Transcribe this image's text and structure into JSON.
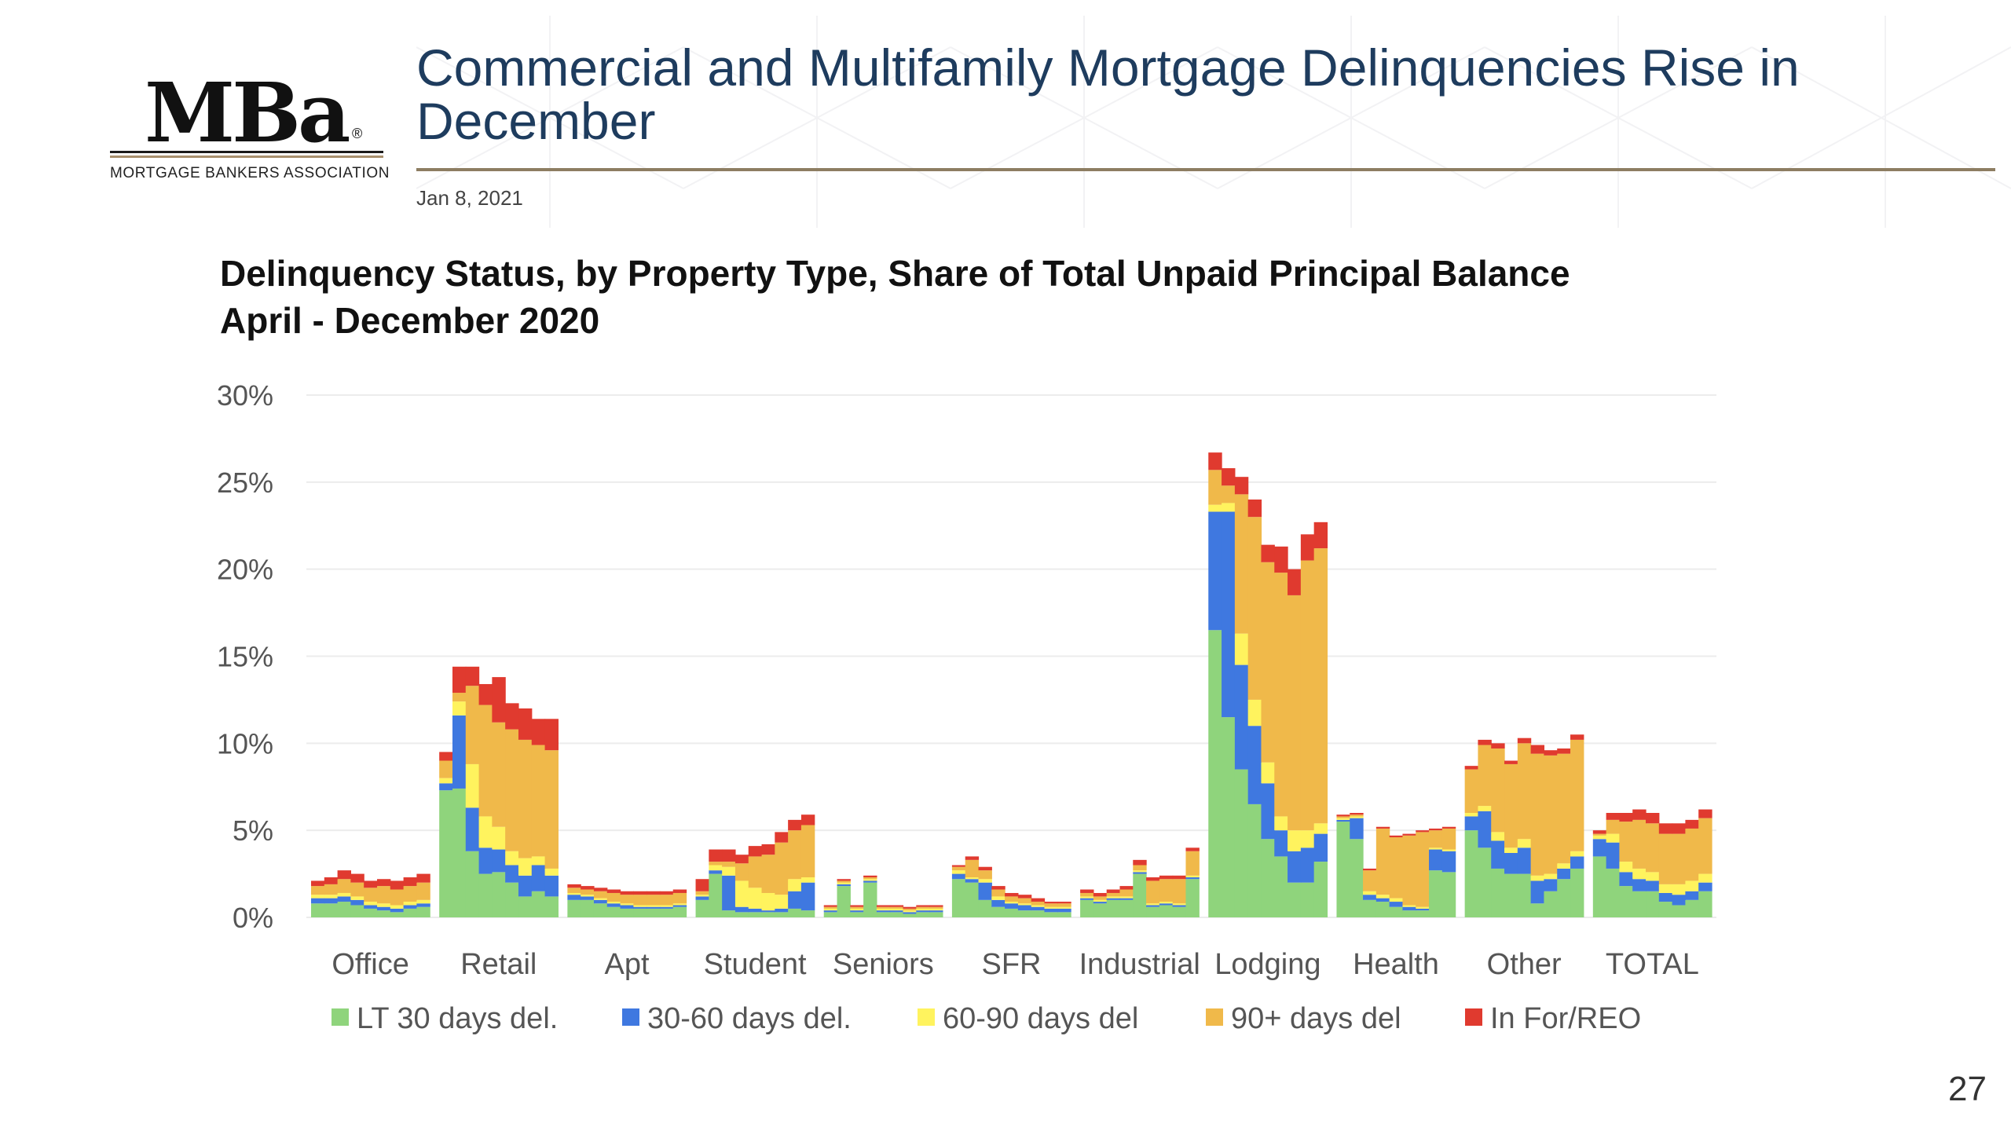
{
  "header": {
    "logo_mark": "MBa",
    "logo_registered": "®",
    "logo_text": "MORTGAGE BANKERS ASSOCIATION",
    "title": "Commercial and Multifamily Mortgage Delinquencies Rise in December",
    "date": "Jan 8, 2021"
  },
  "page_number": "27",
  "colors": {
    "title": "#1e3c5e",
    "rule": "#8d7d62",
    "series": [
      "#8fd47c",
      "#3f78e0",
      "#fff35e",
      "#f0b94a",
      "#e03a2f"
    ]
  },
  "chart_data": {
    "type": "bar",
    "stacked": true,
    "title": "Delinquency Status, by Property Type, Share of Total Unpaid Principal Balance",
    "subtitle": "April - December 2020",
    "ylim": [
      0,
      30
    ],
    "yticks": [
      "0%",
      "5%",
      "10%",
      "15%",
      "20%",
      "25%",
      "30%"
    ],
    "grid": true,
    "legend_position": "bottom",
    "months_per_group": 9,
    "categories": [
      "Office",
      "Retail",
      "Apt",
      "Student",
      "Seniors",
      "SFR",
      "Industrial",
      "Lodging",
      "Health",
      "Other",
      "TOTAL"
    ],
    "series": [
      {
        "name": "LT 30 days del.",
        "values": [
          [
            0.8,
            0.8,
            0.9,
            0.7,
            0.5,
            0.4,
            0.3,
            0.5,
            0.6
          ],
          [
            7.3,
            7.4,
            3.8,
            2.5,
            2.6,
            2.0,
            1.2,
            1.5,
            1.2
          ],
          [
            1.0,
            1.0,
            0.8,
            0.6,
            0.5,
            0.5,
            0.5,
            0.5,
            0.6
          ],
          [
            1.0,
            2.5,
            0.4,
            0.3,
            0.3,
            0.3,
            0.3,
            0.5,
            0.4
          ],
          [
            0.3,
            1.8,
            0.3,
            2.0,
            0.3,
            0.3,
            0.2,
            0.3,
            0.3
          ],
          [
            2.2,
            2.0,
            1.0,
            0.6,
            0.5,
            0.4,
            0.4,
            0.3,
            0.3
          ],
          [
            1.0,
            0.8,
            1.0,
            1.0,
            2.5,
            0.6,
            0.7,
            0.6,
            2.2
          ],
          [
            16.5,
            11.5,
            8.5,
            6.5,
            4.5,
            3.5,
            2.0,
            2.0,
            3.2
          ],
          [
            5.5,
            4.5,
            1.0,
            0.9,
            0.6,
            0.4,
            0.4,
            2.7,
            2.6
          ],
          [
            5.0,
            4.0,
            2.8,
            2.5,
            2.5,
            0.8,
            1.5,
            2.2,
            2.8
          ],
          [
            3.5,
            2.8,
            1.8,
            1.5,
            1.5,
            0.9,
            0.7,
            1.0,
            1.5
          ]
        ]
      },
      {
        "name": "30-60 days del.",
        "values": [
          [
            0.3,
            0.3,
            0.3,
            0.3,
            0.2,
            0.2,
            0.2,
            0.2,
            0.2
          ],
          [
            0.4,
            4.2,
            2.5,
            1.5,
            1.3,
            1.0,
            1.2,
            1.5,
            1.2
          ],
          [
            0.3,
            0.2,
            0.2,
            0.2,
            0.2,
            0.1,
            0.1,
            0.1,
            0.1
          ],
          [
            0.2,
            0.2,
            2.0,
            0.3,
            0.2,
            0.1,
            0.2,
            1.0,
            1.6
          ],
          [
            0.1,
            0.1,
            0.1,
            0.1,
            0.1,
            0.1,
            0.1,
            0.1,
            0.1
          ],
          [
            0.3,
            0.2,
            1.0,
            0.4,
            0.3,
            0.3,
            0.2,
            0.2,
            0.2
          ],
          [
            0.1,
            0.1,
            0.1,
            0.1,
            0.1,
            0.1,
            0.1,
            0.1,
            0.1
          ],
          [
            6.8,
            11.8,
            6.0,
            4.5,
            3.2,
            1.5,
            1.8,
            2.0,
            1.6
          ],
          [
            0.1,
            1.2,
            0.3,
            0.2,
            0.3,
            0.2,
            0.1,
            1.2,
            1.2
          ],
          [
            0.8,
            2.1,
            1.6,
            1.2,
            1.5,
            1.3,
            0.7,
            0.6,
            0.7
          ],
          [
            1.0,
            1.5,
            0.8,
            0.7,
            0.6,
            0.5,
            0.6,
            0.5,
            0.5
          ]
        ]
      },
      {
        "name": "60-90 days del",
        "values": [
          [
            0.2,
            0.2,
            0.2,
            0.2,
            0.2,
            0.2,
            0.2,
            0.2,
            0.2
          ],
          [
            0.3,
            0.8,
            2.5,
            1.8,
            1.3,
            0.8,
            1.0,
            0.5,
            0.4
          ],
          [
            0.1,
            0.1,
            0.1,
            0.1,
            0.1,
            0.1,
            0.1,
            0.1,
            0.1
          ],
          [
            0.1,
            0.3,
            0.5,
            1.5,
            1.2,
            1.0,
            0.8,
            0.7,
            0.3
          ],
          [
            0.1,
            0.1,
            0.1,
            0.1,
            0.1,
            0.1,
            0.1,
            0.1,
            0.1
          ],
          [
            0.2,
            0.1,
            0.2,
            0.2,
            0.1,
            0.1,
            0.1,
            0.1,
            0.1
          ],
          [
            0.1,
            0.1,
            0.1,
            0.1,
            0.1,
            0.1,
            0.1,
            0.1,
            0.1
          ],
          [
            0.4,
            0.5,
            1.8,
            1.5,
            1.2,
            0.8,
            1.2,
            1.0,
            0.6
          ],
          [
            0.1,
            0.1,
            0.2,
            0.2,
            0.2,
            0.1,
            0.1,
            0.1,
            0.1
          ],
          [
            0.2,
            0.3,
            0.5,
            0.3,
            0.5,
            0.3,
            0.3,
            0.3,
            0.3
          ],
          [
            0.2,
            0.5,
            0.6,
            0.6,
            0.5,
            0.5,
            0.6,
            0.6,
            0.5
          ]
        ]
      },
      {
        "name": "90+ days del",
        "values": [
          [
            0.5,
            0.6,
            0.8,
            0.8,
            0.8,
            1.0,
            0.9,
            0.9,
            1.0
          ],
          [
            1.0,
            0.5,
            4.5,
            6.4,
            6.0,
            7.0,
            6.8,
            6.4,
            6.8
          ],
          [
            0.3,
            0.3,
            0.4,
            0.5,
            0.5,
            0.6,
            0.6,
            0.6,
            0.6
          ],
          [
            0.2,
            0.2,
            0.3,
            1.0,
            1.8,
            2.2,
            3.0,
            2.8,
            3.0
          ],
          [
            0.1,
            0.1,
            0.1,
            0.1,
            0.1,
            0.1,
            0.1,
            0.1,
            0.1
          ],
          [
            0.2,
            1.0,
            0.5,
            0.4,
            0.3,
            0.3,
            0.2,
            0.2,
            0.2
          ],
          [
            0.2,
            0.2,
            0.2,
            0.4,
            0.3,
            1.3,
            1.3,
            1.4,
            1.4
          ],
          [
            2.0,
            1.0,
            8.0,
            10.5,
            11.5,
            14.0,
            13.5,
            15.5,
            15.8
          ],
          [
            0.1,
            0.1,
            1.2,
            3.8,
            3.5,
            4.0,
            4.3,
            1.0,
            1.2
          ],
          [
            2.5,
            3.5,
            4.8,
            4.8,
            5.5,
            7.0,
            6.8,
            6.3,
            6.4
          ],
          [
            0.1,
            0.8,
            2.3,
            2.8,
            2.8,
            2.9,
            2.9,
            3.0,
            3.2
          ]
        ]
      },
      {
        "name": "In For/REO",
        "values": [
          [
            0.3,
            0.4,
            0.5,
            0.5,
            0.4,
            0.4,
            0.5,
            0.5,
            0.5
          ],
          [
            0.5,
            1.5,
            1.1,
            1.2,
            2.6,
            1.5,
            1.8,
            1.5,
            1.8
          ],
          [
            0.2,
            0.2,
            0.2,
            0.2,
            0.2,
            0.2,
            0.2,
            0.2,
            0.2
          ],
          [
            0.7,
            0.7,
            0.7,
            0.5,
            0.6,
            0.6,
            0.6,
            0.6,
            0.6
          ],
          [
            0.1,
            0.1,
            0.1,
            0.1,
            0.1,
            0.1,
            0.1,
            0.1,
            0.1
          ],
          [
            0.1,
            0.2,
            0.2,
            0.2,
            0.2,
            0.2,
            0.2,
            0.1,
            0.1
          ],
          [
            0.2,
            0.2,
            0.2,
            0.2,
            0.3,
            0.2,
            0.2,
            0.2,
            0.2
          ],
          [
            1.0,
            1.0,
            1.0,
            1.0,
            1.0,
            1.5,
            1.5,
            1.5,
            1.5
          ],
          [
            0.1,
            0.1,
            0.1,
            0.1,
            0.1,
            0.1,
            0.1,
            0.1,
            0.1
          ],
          [
            0.2,
            0.3,
            0.3,
            0.2,
            0.3,
            0.5,
            0.3,
            0.3,
            0.3
          ],
          [
            0.2,
            0.4,
            0.5,
            0.6,
            0.6,
            0.6,
            0.6,
            0.5,
            0.5
          ]
        ]
      }
    ]
  }
}
